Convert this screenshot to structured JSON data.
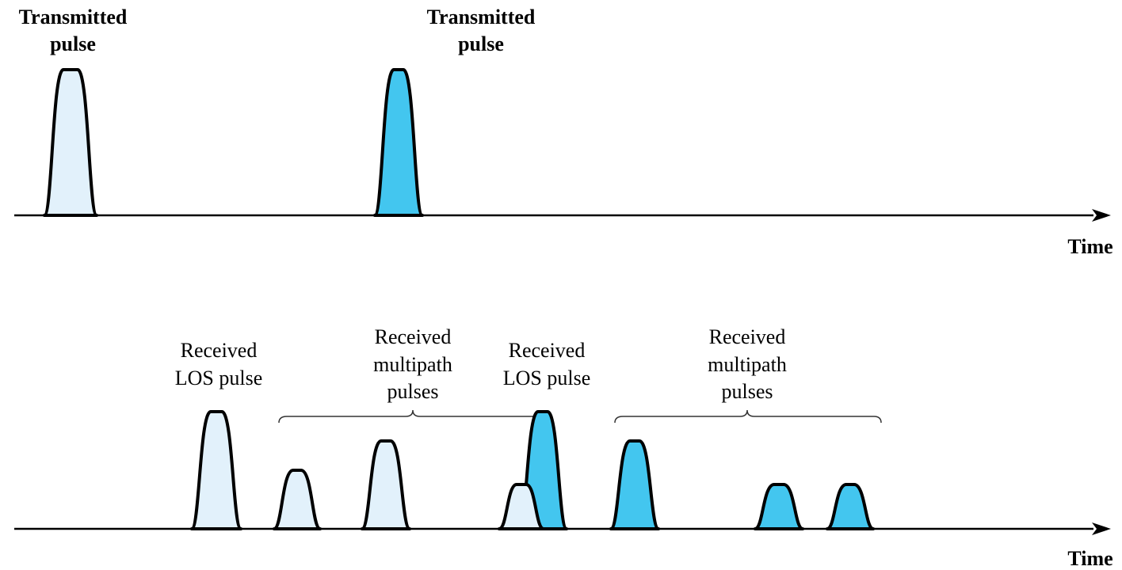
{
  "colors": {
    "light_fill": "#e2f1fb",
    "dark_fill": "#43c6ef",
    "stroke": "#000000"
  },
  "top": {
    "label_1": [
      "Transmitted",
      "pulse"
    ],
    "label_2": [
      "Transmitted",
      "pulse"
    ],
    "axis_label": "Time"
  },
  "bottom": {
    "label_los_1": [
      "Received",
      "LOS pulse"
    ],
    "label_multi_1": [
      "Received",
      "multipath",
      "pulses"
    ],
    "label_los_2": [
      "Received",
      "LOS pulse"
    ],
    "label_multi_2": [
      "Received",
      "multipath",
      "pulses"
    ],
    "axis_label": "Time"
  }
}
